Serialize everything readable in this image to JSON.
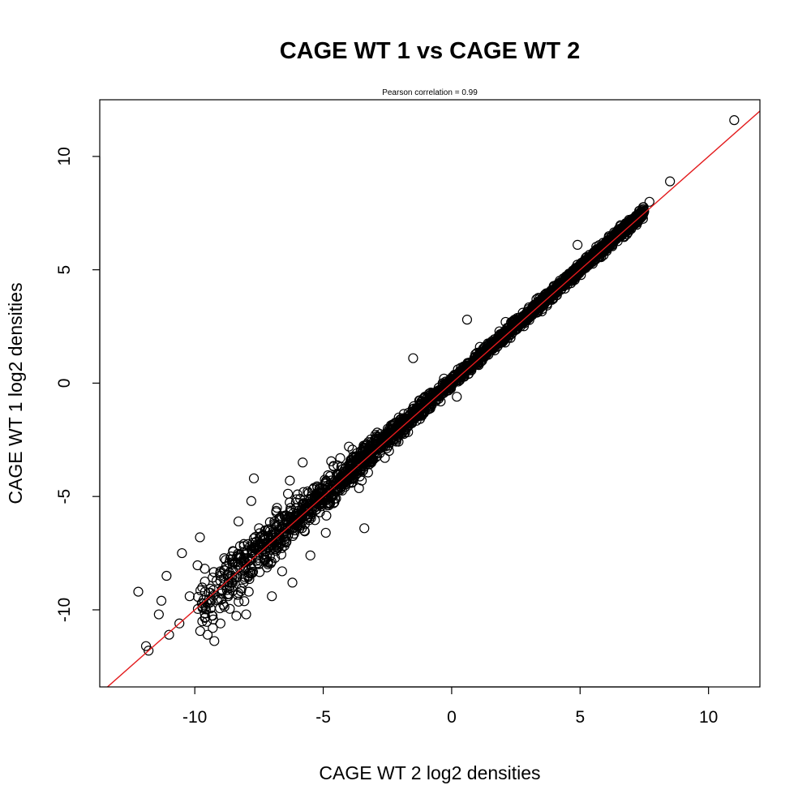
{
  "chart_data": {
    "type": "scatter",
    "title": "CAGE WT 1 vs CAGE WT 2",
    "subtitle": "Pearson correlation =  0.99",
    "xlabel": "CAGE WT 2 log2 densities",
    "ylabel": "CAGE WT 1 log2 densities",
    "xlim": [
      -13.7,
      12.0
    ],
    "ylim": [
      -13.4,
      12.5
    ],
    "xticks": [
      -10,
      -5,
      0,
      5,
      10
    ],
    "yticks": [
      -10,
      -5,
      0,
      5,
      10
    ],
    "xtick_labels": [
      "-10",
      "-5",
      "0",
      "5",
      "10"
    ],
    "ytick_labels": [
      "-10",
      "-5",
      "0",
      "5",
      "10"
    ],
    "grid": false,
    "legend": "none",
    "point_color": "#000000",
    "line_color": "#e31a1c",
    "reference_line": {
      "intercept": 0,
      "slope": 1
    },
    "points": [
      [
        11.0,
        11.6
      ],
      [
        8.5,
        8.9
      ],
      [
        7.7,
        8.0
      ],
      [
        7.3,
        7.6
      ],
      [
        6.9,
        7.2
      ],
      [
        6.5,
        6.8
      ],
      [
        4.9,
        6.1
      ],
      [
        0.6,
        2.8
      ],
      [
        -1.5,
        1.1
      ],
      [
        0.2,
        -0.6
      ],
      [
        -2.6,
        -3.3
      ],
      [
        -4.0,
        -2.8
      ],
      [
        -3.5,
        -4.3
      ],
      [
        -3.4,
        -6.4
      ],
      [
        -4.9,
        -6.6
      ],
      [
        -5.8,
        -3.5
      ],
      [
        -7.7,
        -4.2
      ],
      [
        -9.8,
        -6.8
      ],
      [
        -10.5,
        -7.5
      ],
      [
        -11.1,
        -8.5
      ],
      [
        -12.2,
        -9.2
      ],
      [
        -11.3,
        -9.6
      ],
      [
        -11.9,
        -11.6
      ],
      [
        -11.8,
        -11.8
      ],
      [
        -11.0,
        -11.1
      ],
      [
        -9.5,
        -11.1
      ],
      [
        -9.3,
        -10.8
      ],
      [
        -9.0,
        -10.6
      ],
      [
        -8.0,
        -10.2
      ],
      [
        -7.0,
        -9.4
      ],
      [
        -6.2,
        -8.8
      ],
      [
        -5.5,
        -7.6
      ],
      [
        -11.4,
        -10.2
      ],
      [
        -10.6,
        -10.6
      ],
      [
        -10.2,
        -9.4
      ],
      [
        -9.6,
        -9.2
      ],
      [
        -8.8,
        -7.8
      ],
      [
        -8.3,
        -6.1
      ],
      [
        -7.8,
        -5.2
      ],
      [
        -7.4,
        -7.2
      ],
      [
        -6.8,
        -5.5
      ],
      [
        -6.3,
        -4.3
      ],
      [
        -5.6,
        -5.9
      ],
      [
        -4.8,
        -4.6
      ],
      [
        -4.3,
        -3.7
      ],
      [
        -3.7,
        -3.6
      ],
      [
        -3.1,
        -3.0
      ],
      [
        -2.4,
        -2.2
      ],
      [
        -1.8,
        -1.6
      ],
      [
        -1.2,
        -1.1
      ],
      [
        -0.6,
        -0.5
      ],
      [
        0.3,
        0.5
      ],
      [
        0.9,
        0.8
      ],
      [
        1.6,
        1.5
      ],
      [
        2.3,
        2.4
      ],
      [
        2.9,
        3.0
      ],
      [
        3.5,
        3.4
      ],
      [
        4.1,
        4.2
      ],
      [
        4.7,
        4.8
      ],
      [
        5.2,
        5.3
      ],
      [
        5.7,
        5.8
      ],
      [
        6.2,
        6.2
      ],
      [
        3.3,
        3.7
      ],
      [
        2.1,
        2.7
      ],
      [
        1.1,
        1.6
      ],
      [
        -0.3,
        0.2
      ],
      [
        -2.0,
        -1.9
      ],
      [
        -3.9,
        -4.4
      ],
      [
        -5.3,
        -5.6
      ],
      [
        -6.5,
        -6.9
      ],
      [
        -7.3,
        -7.8
      ],
      [
        -8.1,
        -8.8
      ],
      [
        -9.0,
        -8.3
      ],
      [
        -8.7,
        -9.4
      ],
      [
        -7.9,
        -9.2
      ],
      [
        -6.6,
        -8.3
      ],
      [
        -7.5,
        -6.4
      ],
      [
        -6.9,
        -6.2
      ],
      [
        -5.9,
        -5.1
      ],
      [
        -5.1,
        -4.8
      ],
      [
        -4.6,
        -5.3
      ],
      [
        -4.2,
        -4.0
      ],
      [
        -3.3,
        -2.7
      ]
    ]
  }
}
